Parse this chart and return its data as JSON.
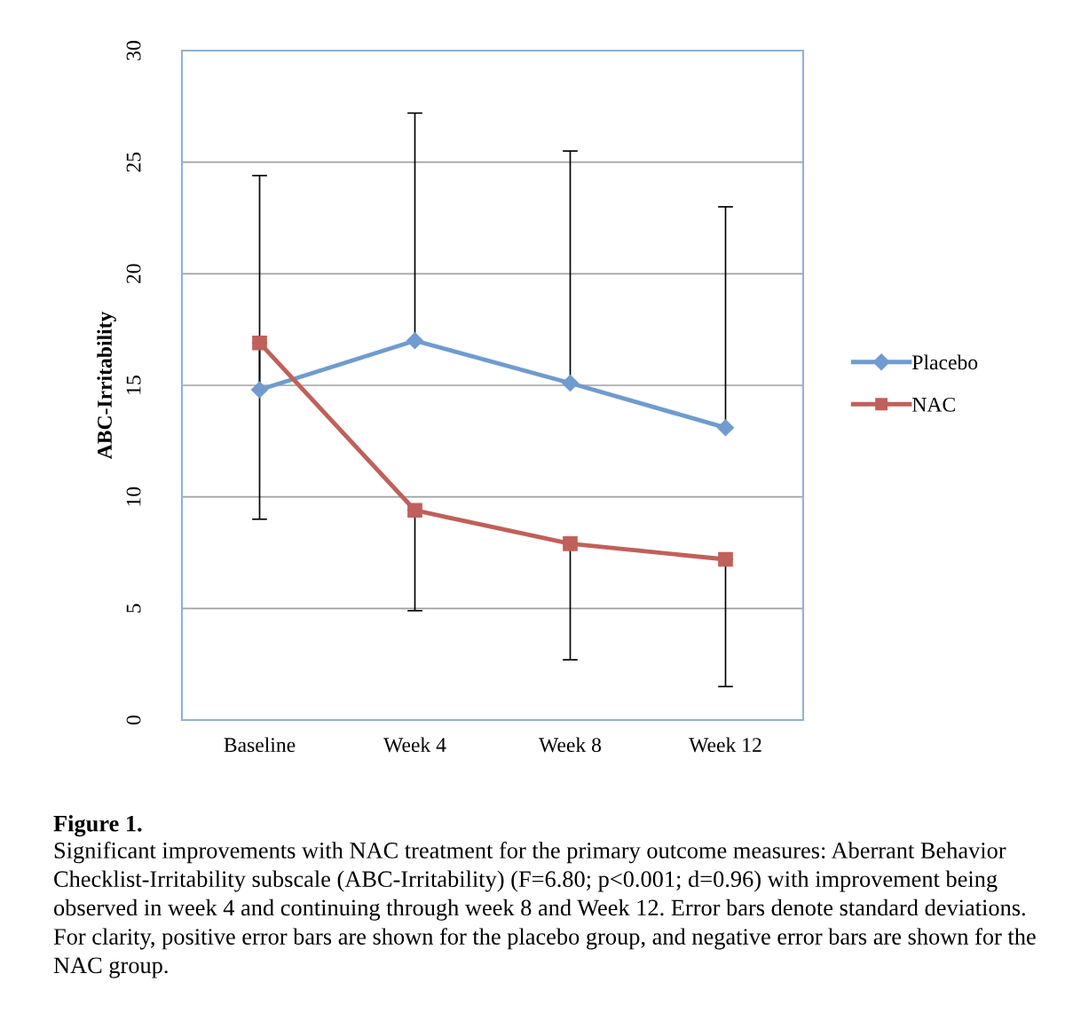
{
  "chart_data": {
    "type": "line",
    "ylabel": "ABC-Irritability",
    "categories": [
      "Baseline",
      "Week 4",
      "Week 8",
      "Week 12"
    ],
    "series": [
      {
        "name": "Placebo",
        "color": "#6f9bd0",
        "marker": "diamond",
        "values": [
          14.8,
          17.0,
          15.1,
          13.1
        ],
        "errors": [
          [
            14.8,
            24.4
          ],
          [
            17.0,
            27.2
          ],
          [
            15.1,
            25.5
          ],
          [
            13.1,
            23.0
          ]
        ]
      },
      {
        "name": "NAC",
        "color": "#c0605a",
        "marker": "square",
        "values": [
          16.9,
          9.4,
          7.9,
          7.2
        ],
        "errors": [
          [
            9.0,
            16.9
          ],
          [
            4.9,
            9.4
          ],
          [
            2.7,
            7.9
          ],
          [
            1.5,
            7.2
          ]
        ]
      }
    ],
    "ylim": [
      0,
      30
    ],
    "yticks": [
      0,
      5,
      10,
      15,
      20,
      25,
      30
    ],
    "grid": "y",
    "legend": "right",
    "line_style": "solid",
    "annotations": [
      "Figure 1.",
      "Significant improvements with NAC treatment for the primary outcome measures: Aberrant Behavior Checklist-Irritability subscale (ABC-Irritability) (F=6.80; p<0.001; d=0.96) with improvement being observed in week 4 and continuing through week 8 and Week 12. Error bars denote standard deviations. For clarity, positive error bars are shown for the placebo group, and negative error bars are shown for the NAC group."
    ]
  }
}
